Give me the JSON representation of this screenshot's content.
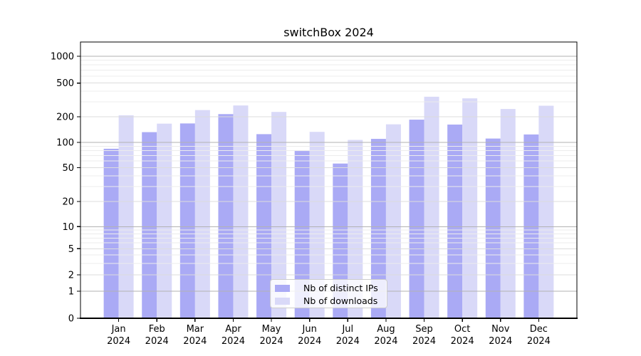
{
  "chart_data": {
    "type": "bar",
    "title": "switchBox 2024",
    "categories": [
      "Jan",
      "Feb",
      "Mar",
      "Apr",
      "May",
      "Jun",
      "Jul",
      "Aug",
      "Sep",
      "Oct",
      "Nov",
      "Dec"
    ],
    "category_year": "2024",
    "series": [
      {
        "name": "Nb of distinct IPs",
        "color": "#aaaaf5",
        "values": [
          84,
          132,
          167,
          215,
          125,
          79,
          56,
          110,
          185,
          162,
          111,
          124
        ]
      },
      {
        "name": "Nb of downloads",
        "color": "#d9d9f8",
        "values": [
          208,
          166,
          240,
          272,
          228,
          133,
          107,
          163,
          345,
          330,
          247,
          270
        ]
      }
    ],
    "xlabel": "",
    "ylabel": "",
    "y_axis": {
      "scale": "log-like with 0 baseline",
      "tick_values": [
        0,
        1,
        2,
        5,
        10,
        20,
        50,
        100,
        200,
        500,
        1000
      ],
      "tick_labels": [
        "0",
        "1",
        "2",
        "5",
        "10",
        "20",
        "50",
        "100",
        "200",
        "500",
        "1000"
      ],
      "minor_gridline_values": [
        3,
        4,
        6,
        7,
        8,
        9,
        30,
        40,
        60,
        70,
        80,
        90,
        300,
        400,
        600,
        700,
        800,
        900
      ],
      "ylim": [
        0,
        1500
      ]
    },
    "grid": true,
    "legend_position": "lower center",
    "colors": {
      "major_grid_power10": "#b2b2b2",
      "major_grid": "#dcdcdc",
      "minor_grid": "#ececec",
      "axis": "#000000",
      "text": "#000000"
    }
  }
}
